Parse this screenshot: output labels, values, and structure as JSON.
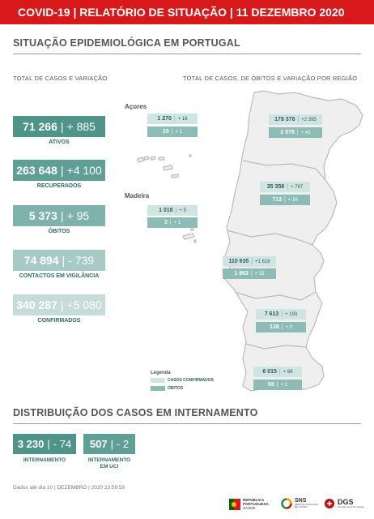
{
  "header": {
    "title": "COVID-19 | RELATÓRIO DE SITUAÇÃO | 11 DEZEMBRO 2020"
  },
  "section1": {
    "title": "SITUAÇÃO EPIDEMIOLÓGICA EM PORTUGAL",
    "left_sub": "TOTAL DE CASOS E VARIAÇÃO",
    "right_sub": "TOTAL DE CASOS, DE ÓBITOS E VARIAÇÃO POR REGIÃO"
  },
  "cards": [
    {
      "value": "71 266",
      "variation": "+ 885",
      "label": "ATIVOS",
      "color": "#4e9489"
    },
    {
      "value": "263 648",
      "variation": "+4 100",
      "label": "RECUPERADOS",
      "color": "#5f9f95"
    },
    {
      "value": "5 373",
      "variation": "+ 95",
      "label": "ÓBITOS",
      "color": "#7fb2ab"
    },
    {
      "value": "74 894",
      "variation": "- 739",
      "label": "CONTACTOS EM VIGILÂNCIA",
      "color": "#a8cac5"
    },
    {
      "value": "340 287",
      "variation": "+5 080",
      "label": "CONFIRMADOS",
      "color": "#c6dcd9"
    }
  ],
  "islands": {
    "azores": {
      "name": "Açores",
      "cases": "1 270",
      "cases_var": "+ 16",
      "deaths": "20",
      "deaths_var": "+ 1"
    },
    "madeira": {
      "name": "Madeira",
      "cases": "1 018",
      "cases_var": "+ 5",
      "deaths": "3",
      "deaths_var": "+ 1"
    }
  },
  "regions": [
    {
      "cases": "178 378",
      "cases_var": "+2 395",
      "deaths": "2 578",
      "deaths_var": "+ 41"
    },
    {
      "cases": "35 358",
      "cases_var": "+ 787",
      "deaths": "713",
      "deaths_var": "+ 16"
    },
    {
      "cases": "110 635",
      "cases_var": "+1 618",
      "deaths": "1 863",
      "deaths_var": "+ 32"
    },
    {
      "cases": "7 613",
      "cases_var": "+ 193",
      "deaths": "138",
      "deaths_var": "+ 2"
    },
    {
      "cases": "6 015",
      "cases_var": "+ 66",
      "deaths": "58",
      "deaths_var": "+ 2"
    }
  ],
  "legend": {
    "title": "Legenda",
    "cases": "CASOS CONFIRMADOS",
    "deaths": "ÓBITOS"
  },
  "section2": {
    "title": "DISTRIBUIÇÃO DOS CASOS EM INTERNAMENTO",
    "ward": {
      "value": "3 230",
      "variation": "- 74",
      "label": "INTERNAMENTO"
    },
    "icu": {
      "value": "507",
      "variation": "- 2",
      "label_1": "INTERNAMENTO",
      "label_2": "EM UCI"
    }
  },
  "footer": {
    "note": "Dados até dia 10 | DEZEMBRO | 2020 23:59:59",
    "logo_rp_1": "REPÚBLICA",
    "logo_rp_2": "PORTUGUESA",
    "logo_rp_3": "SAÚDE",
    "logo_sns": "SNS",
    "logo_sns_sub": "SERVIÇO NACIONAL DE SAÚDE",
    "logo_dgs": "DGS",
    "logo_dgs_sub": "Direção-Geral da Saúde"
  },
  "colors": {
    "header": "#d7191c",
    "teal_dark": "#4e9489",
    "region_cases": "#d0e4e1",
    "region_deaths": "#8dbcb6"
  }
}
